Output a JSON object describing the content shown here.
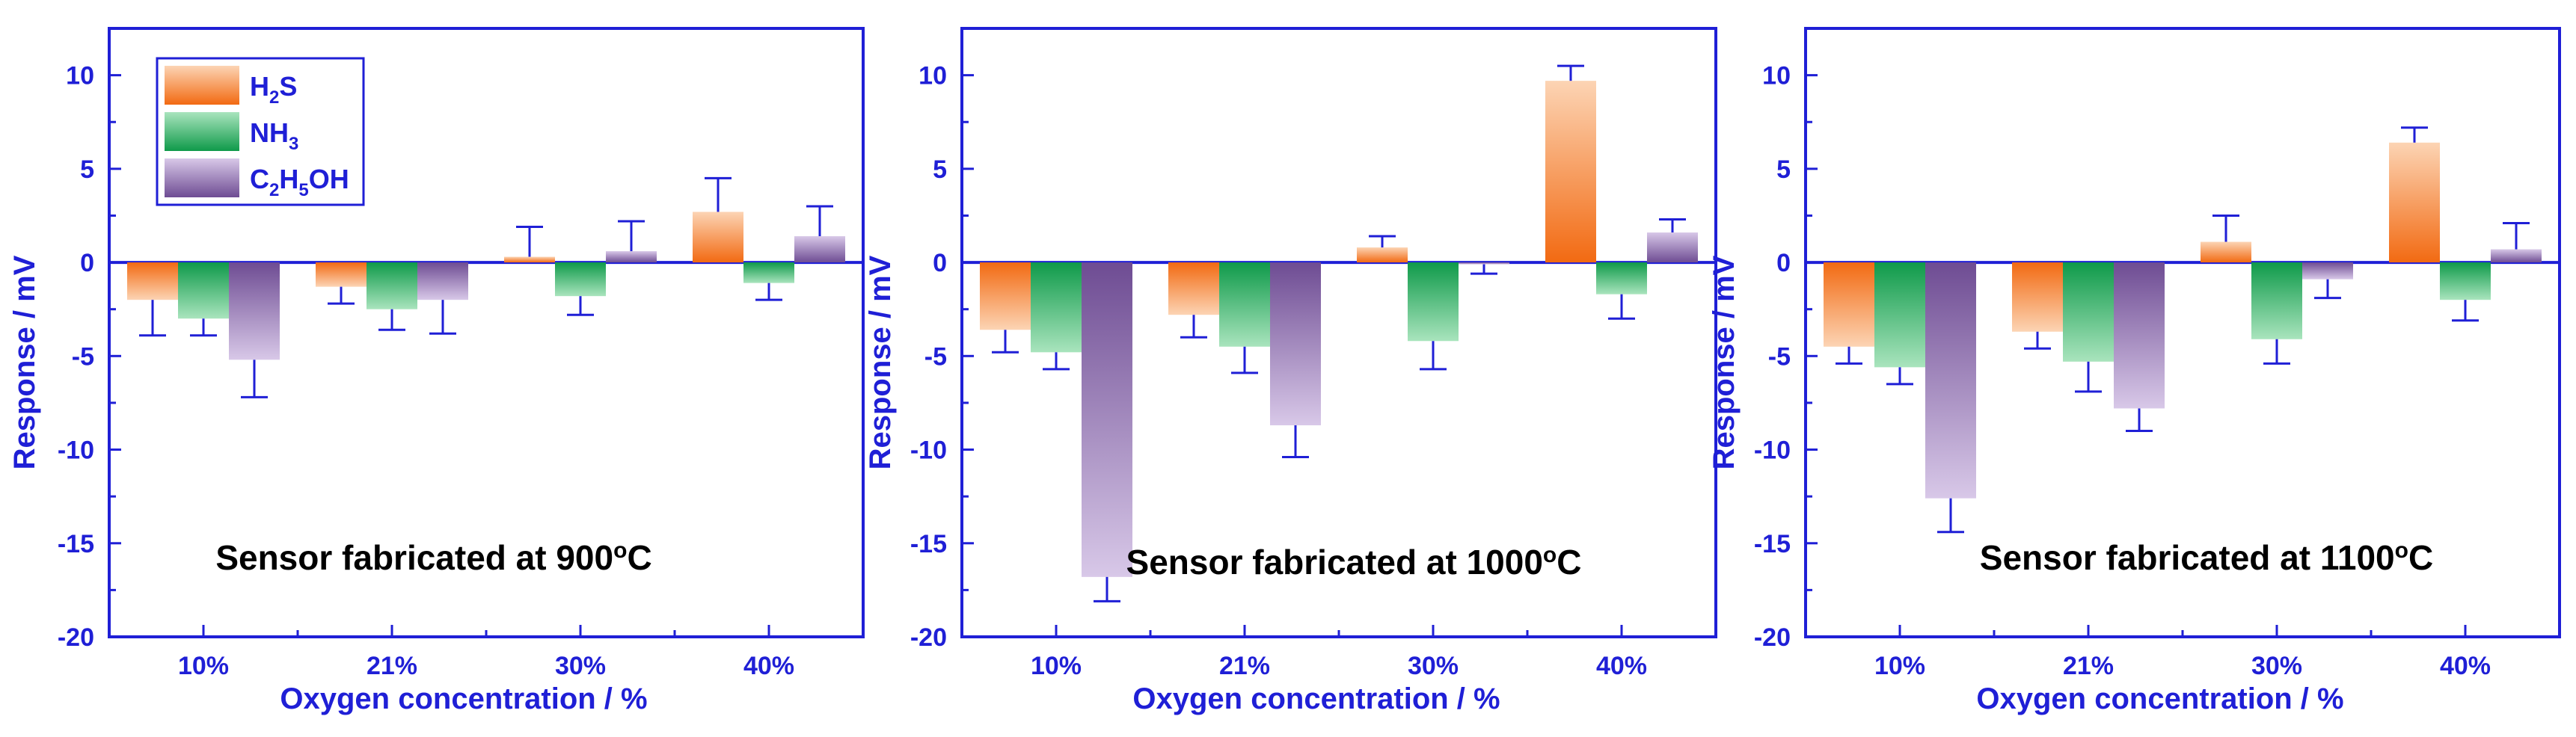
{
  "colors": {
    "axis": "#1f1fd6",
    "h2s_dark": "#f26a12",
    "h2s_light": "#fcd4b4",
    "nh3_dark": "#0f9a4a",
    "nh3_light": "#a9e4bd",
    "eth_dark": "#6e4c93",
    "eth_light": "#d8c8e8"
  },
  "chart_data": [
    {
      "type": "bar",
      "title": "Sensor fabricated at 900°C",
      "title_parts": {
        "prefix": "Sensor fabricated at 900",
        "sup": "o",
        "suffix": "C"
      },
      "xlabel": "Oxygen concentration / %",
      "ylabel": "Response / mV",
      "ylim": [
        -20,
        12.5
      ],
      "yticks": [
        -20,
        -15,
        -10,
        -5,
        0,
        5,
        10
      ],
      "categories": [
        "10%",
        "21%",
        "30%",
        "40%"
      ],
      "legend": {
        "position": "top-left",
        "entries": [
          "H2S",
          "NH3",
          "C2H5OH"
        ]
      },
      "series": [
        {
          "name": "H2S",
          "values": [
            -2.0,
            -1.3,
            0.3,
            2.7
          ],
          "errors": [
            1.9,
            0.9,
            1.6,
            1.8
          ]
        },
        {
          "name": "NH3",
          "values": [
            -3.0,
            -2.5,
            -1.8,
            -1.1
          ],
          "errors": [
            0.9,
            1.1,
            1.0,
            0.9
          ]
        },
        {
          "name": "C2H5OH",
          "values": [
            -5.2,
            -2.0,
            0.6,
            1.4
          ],
          "errors": [
            2.0,
            1.8,
            1.6,
            1.6
          ]
        }
      ]
    },
    {
      "type": "bar",
      "title": "Sensor fabricated at 1000°C",
      "title_parts": {
        "prefix": "Sensor fabricated at 1000",
        "sup": "o",
        "suffix": "C"
      },
      "xlabel": "Oxygen concentration / %",
      "ylabel": "Response / mV",
      "ylim": [
        -20,
        12.5
      ],
      "yticks": [
        -20,
        -15,
        -10,
        -5,
        0,
        5,
        10
      ],
      "categories": [
        "10%",
        "21%",
        "30%",
        "40%"
      ],
      "series": [
        {
          "name": "H2S",
          "values": [
            -3.6,
            -2.8,
            0.8,
            9.7
          ],
          "errors": [
            1.2,
            1.2,
            0.6,
            0.8
          ]
        },
        {
          "name": "NH3",
          "values": [
            -4.8,
            -4.5,
            -4.2,
            -1.7
          ],
          "errors": [
            0.9,
            1.4,
            1.5,
            1.3
          ]
        },
        {
          "name": "C2H5OH",
          "values": [
            -16.8,
            -8.7,
            -0.1,
            1.6
          ],
          "errors": [
            1.3,
            1.7,
            0.5,
            0.7
          ]
        }
      ]
    },
    {
      "type": "bar",
      "title": "Sensor fabricated at 1100°C",
      "title_parts": {
        "prefix": "Sensor fabricated at 1100",
        "sup": "o",
        "suffix": "C"
      },
      "xlabel": "Oxygen concentration / %",
      "ylabel": "Response / mV",
      "ylim": [
        -20,
        12.5
      ],
      "yticks": [
        -20,
        -15,
        -10,
        -5,
        0,
        5,
        10
      ],
      "categories": [
        "10%",
        "21%",
        "30%",
        "40%"
      ],
      "series": [
        {
          "name": "H2S",
          "values": [
            -4.5,
            -3.7,
            1.1,
            6.4
          ],
          "errors": [
            0.9,
            0.9,
            1.4,
            0.8
          ]
        },
        {
          "name": "NH3",
          "values": [
            -5.6,
            -5.3,
            -4.1,
            -2.0
          ],
          "errors": [
            0.9,
            1.6,
            1.3,
            1.1
          ]
        },
        {
          "name": "C2H5OH",
          "values": [
            -12.6,
            -7.8,
            -0.9,
            0.7
          ],
          "errors": [
            1.8,
            1.2,
            1.0,
            1.4
          ]
        }
      ]
    }
  ]
}
